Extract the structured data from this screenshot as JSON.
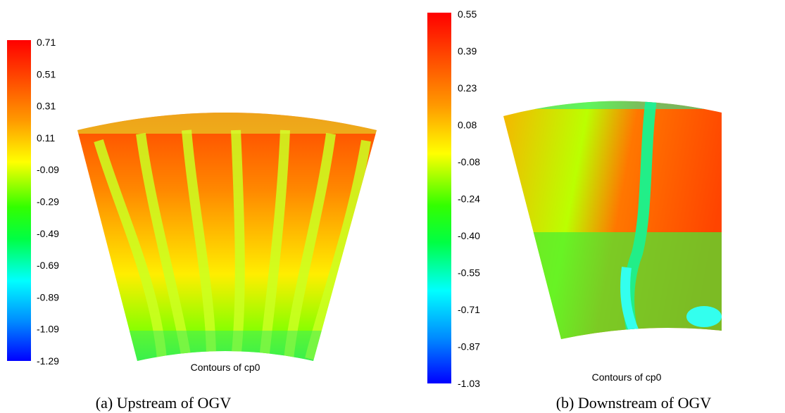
{
  "panels": [
    {
      "colorbar_ticks": [
        "0.71",
        "0.51",
        "0.31",
        "0.11",
        "-0.09",
        "-0.29",
        "-0.49",
        "-0.69",
        "-0.89",
        "-1.09",
        "-1.29"
      ],
      "plot_label": "Contours of cp0",
      "caption": "(a) Upstream of OGV"
    },
    {
      "colorbar_ticks": [
        "0.55",
        "0.39",
        "0.23",
        "0.08",
        "-0.08",
        "-0.24",
        "-0.40",
        "-0.55",
        "-0.71",
        "-0.87",
        "-1.03"
      ],
      "plot_label": "Contours of cp0",
      "caption": "(b) Downstream of OGV"
    }
  ]
}
